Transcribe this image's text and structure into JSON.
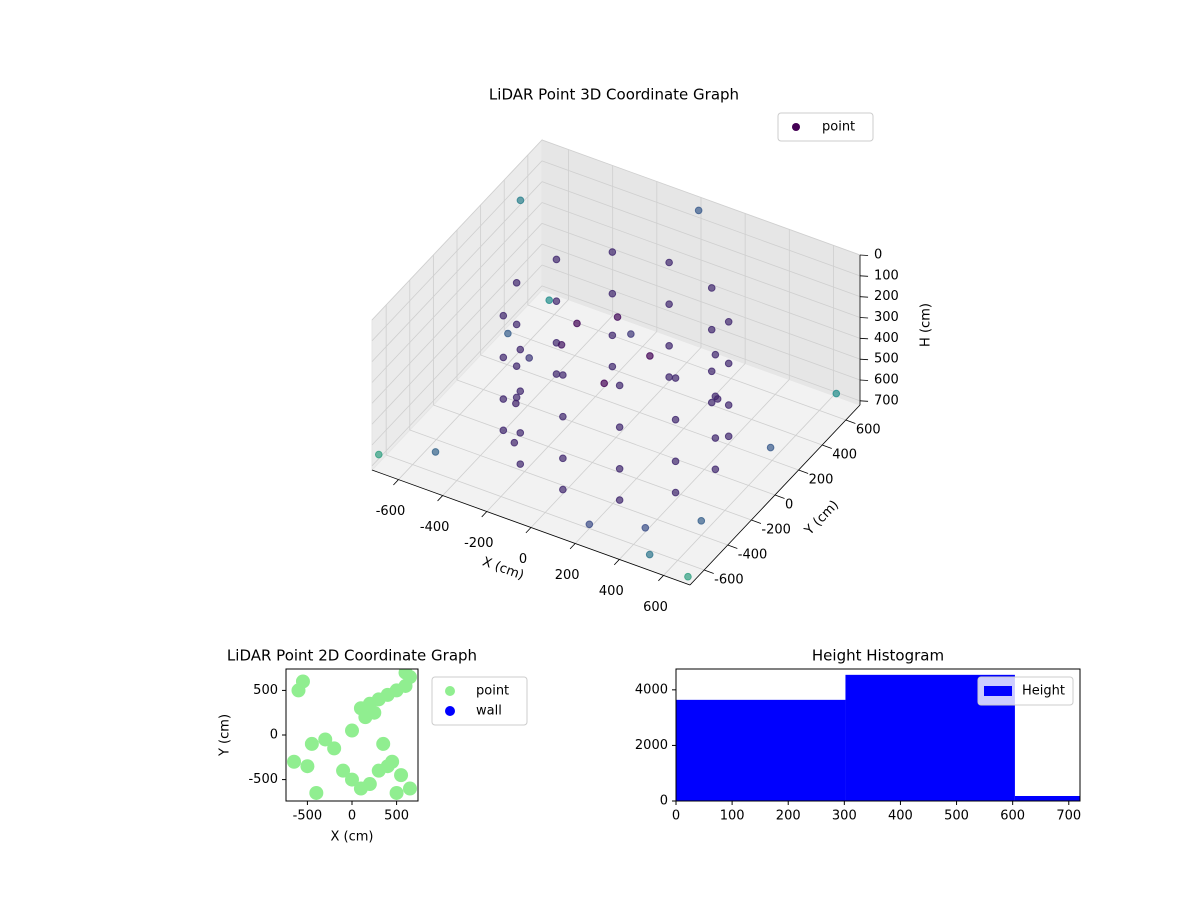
{
  "chart_data": [
    {
      "type": "scatter3d",
      "title": "LiDAR Point 3D Coordinate Graph",
      "xlabel": "X (cm)",
      "ylabel": "Y (cm)",
      "zlabel": "H (cm)",
      "xlim": [
        -720,
        720
      ],
      "ylim": [
        -720,
        720
      ],
      "zlim": [
        0,
        720
      ],
      "zinvert": true,
      "xticks": [
        -600,
        -400,
        -200,
        0,
        200,
        400,
        600
      ],
      "yticks": [
        -600,
        -400,
        -200,
        0,
        200,
        400,
        600
      ],
      "zticks": [
        0,
        100,
        200,
        300,
        400,
        500,
        600,
        700
      ],
      "legend": "upper right",
      "colormap": "viridis",
      "grid": true,
      "series": [
        {
          "name": "point",
          "color": "#440154",
          "x": [
            450,
            390,
            225,
            0,
            -225,
            -390,
            -450,
            -390,
            -225,
            0,
            225,
            390,
            450,
            390,
            225,
            0,
            -225,
            -390,
            -450,
            -390,
            -225,
            0,
            225,
            390,
            450,
            390,
            225,
            0,
            -225,
            -390,
            -450,
            -390,
            -225,
            0,
            225,
            390,
            450,
            390,
            225,
            0,
            -225,
            -390,
            -450,
            -390,
            -225,
            0,
            225,
            390,
            -650,
            -500,
            -400,
            -300,
            -550,
            -200,
            -650,
            -700,
            0,
            700,
            650,
            700,
            500,
            200,
            -700,
            -100,
            100,
            0,
            -150,
            -300,
            300,
            600,
            400
          ],
          "y": [
            0,
            225,
            390,
            450,
            390,
            225,
            0,
            -225,
            -390,
            -450,
            -390,
            -225,
            0,
            225,
            390,
            450,
            390,
            225,
            0,
            -225,
            -390,
            -450,
            -390,
            -225,
            0,
            225,
            390,
            450,
            390,
            225,
            0,
            -225,
            -390,
            -450,
            -390,
            -225,
            0,
            225,
            390,
            450,
            390,
            225,
            0,
            -225,
            -390,
            -450,
            -390,
            -225,
            300,
            200,
            -100,
            -300,
            -500,
            500,
            650,
            500,
            700,
            -700,
            650,
            0,
            -650,
            -600,
            -700,
            200,
            100,
            -100,
            -50,
            100,
            300,
            -400,
            -500
          ],
          "z": [
            150,
            150,
            150,
            150,
            150,
            150,
            150,
            150,
            150,
            150,
            150,
            150,
            350,
            350,
            350,
            350,
            350,
            350,
            350,
            350,
            350,
            350,
            350,
            350,
            550,
            550,
            550,
            550,
            550,
            550,
            550,
            550,
            550,
            550,
            550,
            550,
            700,
            700,
            700,
            700,
            700,
            700,
            700,
            700,
            700,
            700,
            700,
            700,
            650,
            650,
            650,
            680,
            700,
            600,
            700,
            150,
            50,
            700,
            650,
            500,
            700,
            700,
            650,
            300,
            350,
            400,
            200,
            450,
            600,
            650,
            700
          ]
        }
      ]
    },
    {
      "type": "scatter",
      "title": "LiDAR Point 2D Coordinate Graph",
      "xlabel": "X (cm)",
      "ylabel": "Y (cm)",
      "xlim": [
        -740,
        740
      ],
      "ylim": [
        -740,
        740
      ],
      "xticks": [
        -500,
        0,
        500
      ],
      "yticks": [
        -500,
        0,
        500
      ],
      "legend": "outside right",
      "series": [
        {
          "name": "point",
          "color": "#90ee90",
          "x": [
            100,
            200,
            300,
            400,
            500,
            600,
            650,
            150,
            250,
            350,
            450,
            550,
            -100,
            0,
            100,
            200,
            300,
            400,
            500,
            -550,
            -600,
            -450,
            -300,
            -200,
            -650,
            600,
            650,
            -500,
            -400,
            0
          ],
          "y": [
            300,
            350,
            400,
            450,
            500,
            550,
            650,
            200,
            250,
            -100,
            -300,
            -450,
            -400,
            -500,
            -600,
            -550,
            -400,
            -350,
            -650,
            600,
            500,
            -100,
            -50,
            -150,
            -300,
            700,
            -600,
            -350,
            -650,
            50
          ]
        },
        {
          "name": "wall",
          "color": "#0000ff",
          "x": [],
          "y": []
        }
      ]
    },
    {
      "type": "histogram",
      "title": "Height Histogram",
      "label": "Height",
      "color": "#0000ff",
      "bins": [
        0,
        302,
        604,
        720
      ],
      "values": [
        3640,
        4540,
        180
      ],
      "xlim": [
        0,
        720
      ],
      "ylim": [
        0,
        4750
      ],
      "xticks": [
        0,
        100,
        200,
        300,
        400,
        500,
        600,
        700
      ],
      "yticks": [
        0,
        2000,
        4000
      ],
      "legend": "upper right"
    }
  ]
}
